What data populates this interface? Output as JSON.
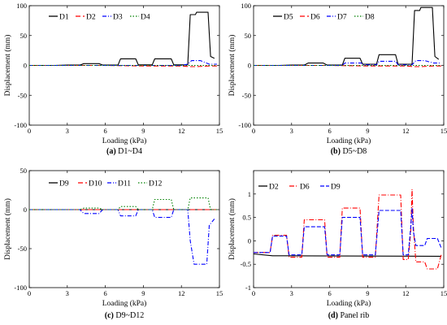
{
  "chart_data": [
    {
      "type": "line",
      "caption_letter": "(a)",
      "caption_text": "D1~D4",
      "xlabel": "Loading (kPa)",
      "ylabel": "Displacement (mm)",
      "xlim": [
        0,
        15
      ],
      "ylim": [
        -100,
        100
      ],
      "xticks": [
        "0",
        "3",
        "6",
        "9",
        "12",
        "15"
      ],
      "yticks": [
        "100",
        "50",
        "0",
        "-50",
        "-100"
      ],
      "xtick_values": [
        0,
        3,
        6,
        9,
        12,
        15
      ],
      "ytick_values": [
        100,
        50,
        0,
        -50,
        -100
      ],
      "grid": false,
      "legend_position": "top-left",
      "series": [
        {
          "name": "D1",
          "color": "#000000",
          "dash": "",
          "x": [
            0,
            1,
            2,
            3,
            4,
            4.3,
            5.5,
            5.8,
            7,
            7.2,
            8.4,
            8.6,
            9.7,
            9.9,
            11.2,
            11.4,
            12.5,
            12.7,
            13.1,
            13.2,
            14.1,
            14.3,
            14.6
          ],
          "y": [
            0,
            0,
            0,
            0.5,
            0.5,
            3,
            3,
            0.5,
            0.5,
            11,
            11,
            1,
            1,
            11,
            11,
            1,
            1,
            85,
            85,
            89,
            89,
            15,
            12
          ]
        },
        {
          "name": "D2",
          "color": "#ff0000",
          "dash": "6,3",
          "x": [
            0,
            3,
            6,
            9,
            12,
            12.7,
            13.2,
            14.2,
            14.8
          ],
          "y": [
            0,
            0,
            0,
            -1,
            -1,
            -2,
            -2,
            -1,
            -1
          ]
        },
        {
          "name": "D3",
          "color": "#0000ff",
          "dash": "5,2,1,2",
          "x": [
            0,
            3,
            6,
            9,
            12,
            12.5,
            12.8,
            13.5,
            14.2,
            14.8
          ],
          "y": [
            0,
            0,
            0,
            0,
            0,
            2,
            8,
            8,
            2,
            2
          ]
        },
        {
          "name": "D4",
          "color": "#008000",
          "dash": "1.5,2",
          "x": [
            0,
            3,
            6,
            9,
            12,
            14.8
          ],
          "y": [
            0,
            0,
            0,
            0,
            0,
            0
          ]
        }
      ]
    },
    {
      "type": "line",
      "caption_letter": "(b)",
      "caption_text": "D5~D8",
      "xlabel": "Loading (kPa)",
      "ylabel": "Displacement (mm)",
      "xlim": [
        0,
        15
      ],
      "ylim": [
        -100,
        100
      ],
      "xticks": [
        "0",
        "3",
        "6",
        "9",
        "12",
        "15"
      ],
      "yticks": [
        "100",
        "50",
        "0",
        "-50",
        "-100"
      ],
      "xtick_values": [
        0,
        3,
        6,
        9,
        12,
        15
      ],
      "ytick_values": [
        100,
        50,
        0,
        -50,
        -100
      ],
      "grid": false,
      "legend_position": "top-left",
      "series": [
        {
          "name": "D5",
          "color": "#000000",
          "dash": "",
          "x": [
            0,
            1,
            2,
            3,
            4,
            4.3,
            5.5,
            5.8,
            7,
            7.2,
            8.4,
            8.6,
            9.7,
            9.9,
            11.2,
            11.4,
            12.5,
            12.7,
            13.1,
            13.2,
            14.1,
            14.3,
            14.6
          ],
          "y": [
            0,
            0,
            0,
            0.5,
            0.5,
            4,
            4,
            0.5,
            0.5,
            12,
            12,
            2,
            2,
            18,
            18,
            2,
            2,
            92,
            92,
            97,
            97,
            15,
            10
          ]
        },
        {
          "name": "D6",
          "color": "#ff0000",
          "dash": "6,3",
          "x": [
            0,
            3,
            6,
            9,
            12,
            12.7,
            13.2,
            14.2,
            14.8
          ],
          "y": [
            0,
            0,
            0,
            -1,
            -1,
            -2,
            -2,
            -1,
            -1
          ]
        },
        {
          "name": "D7",
          "color": "#0000ff",
          "dash": "5,2,1,2",
          "x": [
            0,
            3,
            6,
            7,
            7.2,
            8.5,
            8.7,
            9.7,
            9.9,
            11.2,
            11.4,
            12.5,
            12.8,
            13.5,
            14.2,
            14.8
          ],
          "y": [
            0,
            0,
            0,
            0,
            4,
            4,
            1,
            1,
            7,
            7,
            1,
            1,
            8,
            8,
            4,
            4
          ]
        },
        {
          "name": "D8",
          "color": "#008000",
          "dash": "1.5,2",
          "x": [
            0,
            3,
            6,
            9,
            12,
            14.8
          ],
          "y": [
            0,
            0,
            0,
            0,
            0,
            0
          ]
        }
      ]
    },
    {
      "type": "line",
      "caption_letter": "(c)",
      "caption_text": "D9~D12",
      "xlabel": "Loading (kPa)",
      "ylabel": "Displacement (mm)",
      "xlim": [
        0,
        15
      ],
      "ylim": [
        -100,
        50
      ],
      "xticks": [
        "0",
        "3",
        "6",
        "9",
        "12",
        "15"
      ],
      "yticks": [
        "50",
        "0",
        "-50",
        "-100"
      ],
      "xtick_values": [
        0,
        3,
        6,
        9,
        12,
        15
      ],
      "ytick_values": [
        50,
        0,
        -50,
        -100
      ],
      "grid": false,
      "legend_position": "top",
      "series": [
        {
          "name": "D9",
          "color": "#000000",
          "dash": "",
          "x": [
            0,
            3,
            6,
            9,
            12,
            14.8
          ],
          "y": [
            0,
            0,
            0,
            0,
            0,
            0
          ]
        },
        {
          "name": "D10",
          "color": "#ff0000",
          "dash": "6,3",
          "x": [
            0,
            3,
            6,
            9,
            12,
            14.8
          ],
          "y": [
            0,
            0,
            0,
            0,
            0,
            0
          ]
        },
        {
          "name": "D11",
          "color": "#0000ff",
          "dash": "5,2,1,2",
          "x": [
            0,
            4,
            4.3,
            5.5,
            5.8,
            7,
            7.2,
            8.4,
            8.6,
            9.7,
            9.9,
            11.2,
            11.4,
            12.5,
            12.7,
            13,
            14,
            14.2,
            14.6
          ],
          "y": [
            0,
            0,
            -5,
            -5,
            0,
            0,
            -8,
            -8,
            0,
            0,
            -10,
            -10,
            0,
            0,
            -40,
            -70,
            -70,
            -20,
            -12
          ]
        },
        {
          "name": "D12",
          "color": "#008000",
          "dash": "1.5,2",
          "x": [
            0,
            4,
            4.3,
            5.5,
            5.8,
            7,
            7.2,
            8.4,
            8.6,
            9.7,
            9.9,
            11.2,
            11.4,
            12.5,
            12.7,
            14.1,
            14.3,
            14.8
          ],
          "y": [
            0,
            0,
            2,
            2,
            0,
            0,
            4,
            4,
            0,
            0,
            13,
            13,
            0,
            0,
            15,
            15,
            0,
            0
          ]
        }
      ]
    },
    {
      "type": "line",
      "caption_letter": "(d)",
      "caption_text": "Panel rib",
      "xlabel": "Loading (kPa)",
      "ylabel": "Displacement (mm)",
      "xlim": [
        0,
        15
      ],
      "ylim": [
        -1,
        1.5
      ],
      "xticks": [
        "0",
        "3",
        "6",
        "9",
        "12",
        "15"
      ],
      "yticks": [
        "1",
        "0.5",
        "0",
        "-0.5",
        "-1"
      ],
      "xtick_values": [
        0,
        3,
        6,
        9,
        12,
        15
      ],
      "ytick_values": [
        1,
        0.5,
        0,
        -0.5,
        -1
      ],
      "grid": false,
      "legend_position": "top",
      "series": [
        {
          "name": "D2",
          "color": "#000000",
          "dash": "",
          "x": [
            0,
            1.5,
            2.5,
            14.8
          ],
          "y": [
            -0.28,
            -0.32,
            -0.32,
            -0.33
          ]
        },
        {
          "name": "D6",
          "color": "#ff0000",
          "dash": "6,2,1,2",
          "x": [
            0,
            1.3,
            1.5,
            2.6,
            2.8,
            3.8,
            4,
            5.6,
            5.8,
            6.8,
            7,
            8.4,
            8.6,
            9.6,
            9.9,
            11.6,
            11.8,
            12.2,
            12.4,
            12.5,
            12.6,
            12.8,
            13.5,
            13.7,
            14.5,
            14.8
          ],
          "y": [
            -0.25,
            -0.25,
            0.12,
            0.12,
            -0.35,
            -0.35,
            0.45,
            0.45,
            -0.35,
            -0.35,
            0.7,
            0.7,
            -0.35,
            -0.35,
            0.98,
            0.98,
            -0.4,
            -0.4,
            0.2,
            1.1,
            0.3,
            -0.45,
            -0.45,
            -0.6,
            -0.6,
            -0.3
          ]
        },
        {
          "name": "D9",
          "color": "#0000ff",
          "dash": "5,2",
          "x": [
            0,
            1.3,
            1.5,
            2.6,
            2.8,
            3.8,
            4,
            5.6,
            5.8,
            6.8,
            7,
            8.4,
            8.6,
            9.6,
            9.9,
            11.6,
            11.8,
            12.2,
            12.4,
            12.5,
            12.6,
            12.8,
            13.5,
            13.7,
            14.5,
            14.8
          ],
          "y": [
            -0.25,
            -0.25,
            0.1,
            0.1,
            -0.3,
            -0.3,
            0.3,
            0.3,
            -0.3,
            -0.3,
            0.5,
            0.5,
            -0.3,
            -0.3,
            0.65,
            0.65,
            -0.3,
            -0.3,
            0.3,
            0.7,
            0.2,
            -0.1,
            -0.1,
            0.05,
            0.05,
            -0.15
          ]
        }
      ]
    }
  ]
}
